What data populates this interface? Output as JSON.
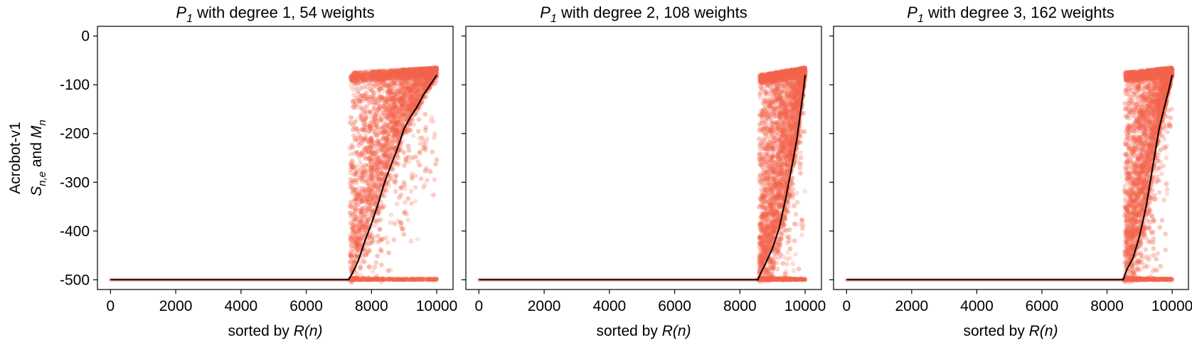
{
  "figure": {
    "ylabel_line1": "Acrobot-v1",
    "ylabel_line2_S": "S",
    "ylabel_line2_S_sub": "n,e",
    "ylabel_line2_and": " and ",
    "ylabel_line2_M": "M",
    "ylabel_line2_M_sub": "n",
    "colors": {
      "scatter": "#f4654c",
      "mean_line": "#000000",
      "frame": "#000000"
    }
  },
  "chart_data": [
    {
      "type": "scatter",
      "title_prefix": "P",
      "title_sub": "1",
      "title_rest": " with degree 1, 54 weights",
      "xlabel_prefix": "sorted by ",
      "xlabel_italic": "R(n)",
      "xlim": [
        -400,
        10500
      ],
      "ylim": [
        -520,
        20
      ],
      "xticks": [
        0,
        2000,
        4000,
        6000,
        8000,
        10000
      ],
      "yticks": [
        0,
        -100,
        -200,
        -300,
        -400,
        -500
      ],
      "show_yticklabels": true,
      "onset": 7300,
      "scatter_top_range": [
        -65,
        -75
      ],
      "mean_line": {
        "x": [
          0,
          7300,
          7400,
          7500,
          7600,
          7800,
          8000,
          8200,
          8400,
          8600,
          8800,
          9000,
          9200,
          9400,
          9600,
          9800,
          10000
        ],
        "y": [
          -500,
          -500,
          -488,
          -475,
          -460,
          -420,
          -385,
          -345,
          -300,
          -265,
          -230,
          -190,
          -165,
          -145,
          -120,
          -100,
          -80
        ]
      }
    },
    {
      "type": "scatter",
      "title_prefix": "P",
      "title_sub": "1",
      "title_rest": " with degree 2, 108 weights",
      "xlabel_prefix": "sorted by ",
      "xlabel_italic": "R(n)",
      "xlim": [
        -400,
        10500
      ],
      "ylim": [
        -520,
        20
      ],
      "xticks": [
        0,
        2000,
        4000,
        6000,
        8000,
        10000
      ],
      "yticks": [
        0,
        -100,
        -200,
        -300,
        -400,
        -500
      ],
      "show_yticklabels": false,
      "onset": 8550,
      "scatter_top_range": [
        -65,
        -80
      ],
      "mean_line": {
        "x": [
          0,
          8550,
          8650,
          8800,
          9000,
          9200,
          9400,
          9600,
          9750,
          9850,
          9950,
          10000
        ],
        "y": [
          -500,
          -500,
          -485,
          -465,
          -435,
          -395,
          -335,
          -265,
          -210,
          -160,
          -110,
          -80
        ]
      }
    },
    {
      "type": "scatter",
      "title_prefix": "P",
      "title_sub": "1",
      "title_rest": " with degree 3, 162 weights",
      "xlabel_prefix": "sorted by ",
      "xlabel_italic": "R(n)",
      "xlim": [
        -400,
        10500
      ],
      "ylim": [
        -520,
        20
      ],
      "xticks": [
        0,
        2000,
        4000,
        6000,
        8000,
        10000
      ],
      "yticks": [
        0,
        -100,
        -200,
        -300,
        -400,
        -500
      ],
      "show_yticklabels": false,
      "onset": 8500,
      "scatter_top_range": [
        -65,
        -75
      ],
      "mean_line": {
        "x": [
          0,
          8500,
          8600,
          8800,
          9000,
          9200,
          9400,
          9600,
          9800,
          9900,
          10000
        ],
        "y": [
          -500,
          -500,
          -480,
          -455,
          -410,
          -350,
          -270,
          -190,
          -135,
          -110,
          -80
        ]
      }
    }
  ]
}
